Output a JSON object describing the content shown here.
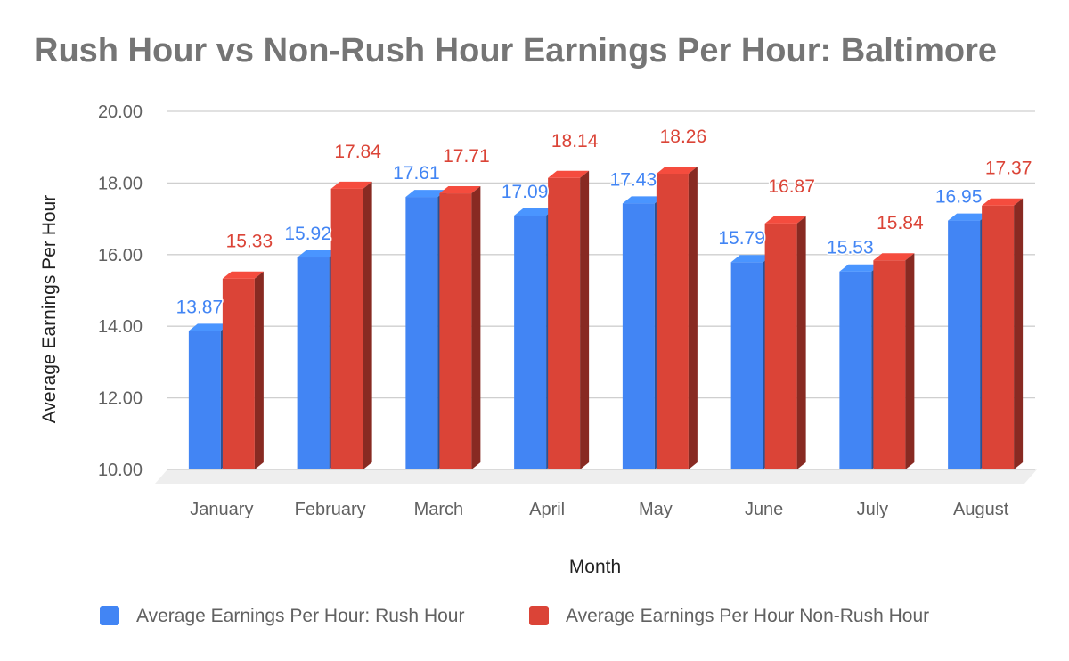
{
  "chart_data": {
    "type": "bar",
    "title": "Rush Hour vs Non-Rush Hour Earnings Per Hour: Baltimore",
    "xlabel": "Month",
    "ylabel": "Average Earnings Per Hour",
    "categories": [
      "January",
      "February",
      "March",
      "April",
      "May",
      "June",
      "July",
      "August"
    ],
    "series": [
      {
        "name": "Average Earnings Per Hour: Rush Hour",
        "color": "#4285F4",
        "values": [
          13.87,
          15.92,
          17.61,
          17.09,
          17.43,
          15.79,
          15.53,
          16.95
        ],
        "labels": [
          "13.87",
          "15.92",
          "17.61",
          "17.09",
          "17.43",
          "15.79",
          "15.53",
          "16.95"
        ]
      },
      {
        "name": "Average Earnings Per Hour Non-Rush Hour",
        "color": "#DB4437",
        "values": [
          15.33,
          17.84,
          17.71,
          18.14,
          18.26,
          16.87,
          15.84,
          17.37
        ],
        "labels": [
          "15.33",
          "17.84",
          "17.71",
          "18.14",
          "18.26",
          "16.87",
          "15.84",
          "17.37"
        ]
      }
    ],
    "ylim": [
      10,
      20
    ],
    "yticks": [
      "10.00",
      "12.00",
      "14.00",
      "16.00",
      "18.00",
      "20.00"
    ],
    "grid": true,
    "legend_position": "bottom",
    "style": "3d-bar"
  }
}
